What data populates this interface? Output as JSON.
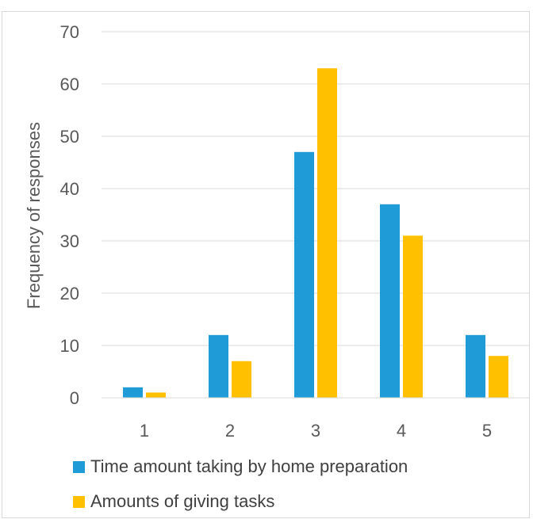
{
  "chart_data": {
    "type": "bar",
    "categories": [
      "1",
      "2",
      "3",
      "4",
      "5"
    ],
    "series": [
      {
        "name": "Time amount taking by home preparation",
        "color": "#1f9bd7",
        "values": [
          2,
          12,
          47,
          37,
          12
        ]
      },
      {
        "name": "Amounts of giving tasks",
        "color": "#ffc000",
        "values": [
          1,
          7,
          63,
          31,
          8
        ]
      }
    ],
    "title": "",
    "xlabel": "",
    "ylabel": "Frequency of responses",
    "ylim": [
      0,
      70
    ],
    "yticks": [
      "0",
      "10",
      "20",
      "30",
      "40",
      "50",
      "60",
      "70"
    ],
    "grid": true,
    "legend_position": "bottom"
  }
}
